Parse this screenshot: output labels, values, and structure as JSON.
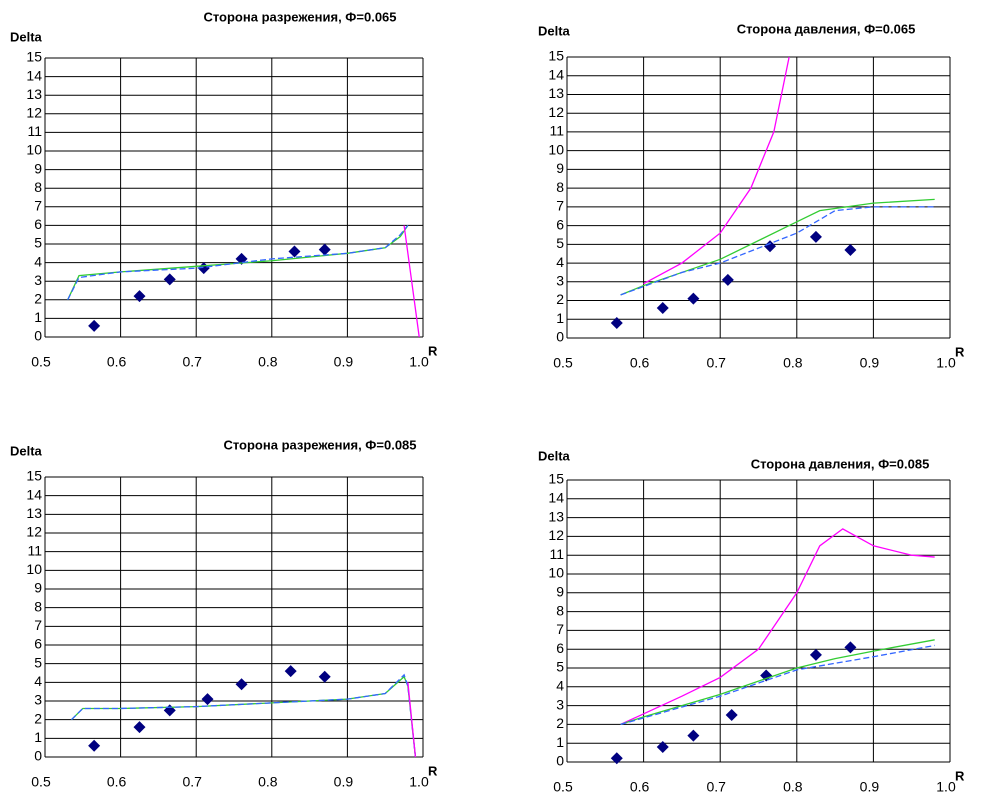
{
  "chart_data": [
    {
      "type": "line",
      "title": "Сторона разрежения, Ф=0.065",
      "ylabel": "Delta",
      "xlabel": "R",
      "xlim": [
        0.5,
        1
      ],
      "ylim": [
        0,
        15
      ],
      "xticks": [
        0.5,
        0.6,
        0.7,
        0.8,
        0.9,
        {
          "value": 1,
          "label": "1.0"
        }
      ],
      "yticks": [
        0,
        1,
        2,
        3,
        4,
        5,
        6,
        7,
        8,
        9,
        10,
        11,
        12,
        13,
        14,
        15
      ],
      "grid": true,
      "series": [
        {
          "style": "markers",
          "color": "#000080",
          "x": [
            0.565,
            0.625,
            0.665,
            0.71,
            0.76,
            0.83,
            0.87
          ],
          "values": [
            0.6,
            2.2,
            3.1,
            3.7,
            4.2,
            4.6,
            4.7
          ]
        },
        {
          "style": "line",
          "color": "#33cc33",
          "x": [
            0.53,
            0.545,
            0.6,
            0.7,
            0.8,
            0.9,
            0.95,
            0.97,
            0.98
          ],
          "values": [
            2,
            3.3,
            3.5,
            3.8,
            4.1,
            4.5,
            4.8,
            5.4,
            6
          ]
        },
        {
          "style": "dashed",
          "color": "#3366ff",
          "x": [
            0.53,
            0.545,
            0.6,
            0.7,
            0.8,
            0.9,
            0.95,
            0.97,
            0.98
          ],
          "values": [
            2,
            3.2,
            3.5,
            3.7,
            4.2,
            4.5,
            4.8,
            5.5,
            6
          ]
        },
        {
          "style": "line",
          "color": "#ff00ff",
          "x": [
            0.975,
            0.985,
            0.995
          ],
          "values": [
            6,
            3,
            0
          ]
        }
      ]
    },
    {
      "type": "line",
      "title": "Сторона давления, Ф=0.065",
      "ylabel": "Delta",
      "xlabel": "R",
      "xlim": [
        0.5,
        1
      ],
      "ylim": [
        0,
        15
      ],
      "xticks": [
        0.5,
        0.6,
        0.7,
        0.8,
        0.9,
        {
          "value": 1,
          "label": "1.0"
        }
      ],
      "yticks": [
        0,
        1,
        2,
        3,
        4,
        5,
        6,
        7,
        8,
        9,
        10,
        11,
        12,
        13,
        14,
        15
      ],
      "grid": true,
      "series": [
        {
          "style": "markers",
          "color": "#000080",
          "x": [
            0.565,
            0.625,
            0.665,
            0.71,
            0.765,
            0.825,
            0.87
          ],
          "values": [
            0.8,
            1.6,
            2.1,
            3.1,
            4.9,
            5.4,
            4.7
          ]
        },
        {
          "style": "line",
          "color": "#ff00ff",
          "x": [
            0.6,
            0.65,
            0.7,
            0.74,
            0.77,
            0.785,
            0.79
          ],
          "values": [
            2.9,
            4,
            5.6,
            8,
            11,
            14,
            15
          ]
        },
        {
          "style": "line",
          "color": "#33cc33",
          "x": [
            0.57,
            0.6,
            0.7,
            0.8,
            0.83,
            0.9,
            0.98
          ],
          "values": [
            2.3,
            2.8,
            4.2,
            6.2,
            6.8,
            7.2,
            7.4
          ]
        },
        {
          "style": "dashed",
          "color": "#3366ff",
          "x": [
            0.57,
            0.65,
            0.7,
            0.8,
            0.85,
            0.9,
            0.98
          ],
          "values": [
            2.3,
            3.5,
            4,
            5.6,
            6.8,
            7,
            7
          ]
        }
      ]
    },
    {
      "type": "line",
      "title": "Сторона разрежения, Ф=0.085",
      "ylabel": "Delta",
      "xlabel": "R",
      "xlim": [
        0.5,
        1
      ],
      "ylim": [
        0,
        15
      ],
      "xticks": [
        0.5,
        0.6,
        0.7,
        0.8,
        0.9,
        {
          "value": 1,
          "label": "1.0"
        }
      ],
      "yticks": [
        0,
        1,
        2,
        3,
        4,
        5,
        6,
        7,
        8,
        9,
        10,
        11,
        12,
        13,
        14,
        15
      ],
      "grid": true,
      "series": [
        {
          "style": "markers",
          "color": "#000080",
          "x": [
            0.565,
            0.625,
            0.665,
            0.715,
            0.76,
            0.825,
            0.87
          ],
          "values": [
            0.6,
            1.6,
            2.5,
            3.1,
            3.9,
            4.6,
            4.3
          ]
        },
        {
          "style": "line",
          "color": "#33cc33",
          "x": [
            0.535,
            0.55,
            0.6,
            0.7,
            0.8,
            0.9,
            0.95,
            0.975,
            0.98,
            0.99
          ],
          "values": [
            2,
            2.6,
            2.6,
            2.7,
            2.9,
            3.1,
            3.4,
            4.3,
            3.8,
            0
          ]
        },
        {
          "style": "dashed",
          "color": "#3366ff",
          "x": [
            0.535,
            0.55,
            0.6,
            0.7,
            0.8,
            0.9,
            0.95,
            0.975,
            0.98,
            0.99
          ],
          "values": [
            2,
            2.6,
            2.6,
            2.7,
            2.9,
            3.1,
            3.4,
            4.4,
            3.8,
            0
          ]
        },
        {
          "style": "line",
          "color": "#ff00ff",
          "x": [
            0.98,
            0.99
          ],
          "values": [
            4,
            0
          ]
        }
      ]
    },
    {
      "type": "line",
      "title": "Сторона давления, Ф=0.085",
      "ylabel": "Delta",
      "xlabel": "R",
      "xlim": [
        0.5,
        1
      ],
      "ylim": [
        0,
        15
      ],
      "xticks": [
        0.5,
        0.6,
        0.7,
        0.8,
        0.9,
        {
          "value": 1,
          "label": "1.0"
        }
      ],
      "yticks": [
        0,
        1,
        2,
        3,
        4,
        5,
        6,
        7,
        8,
        9,
        10,
        11,
        12,
        13,
        14,
        15
      ],
      "grid": true,
      "series": [
        {
          "style": "markers",
          "color": "#000080",
          "x": [
            0.565,
            0.625,
            0.665,
            0.715,
            0.76,
            0.825,
            0.87
          ],
          "values": [
            0.2,
            0.8,
            1.4,
            2.5,
            4.6,
            5.7,
            6.1
          ]
        },
        {
          "style": "line",
          "color": "#ff00ff",
          "x": [
            0.57,
            0.65,
            0.7,
            0.75,
            0.8,
            0.83,
            0.86,
            0.9,
            0.95,
            0.98
          ],
          "values": [
            2,
            3.5,
            4.5,
            6,
            9,
            11.5,
            12.4,
            11.5,
            11,
            10.9
          ]
        },
        {
          "style": "line",
          "color": "#33cc33",
          "x": [
            0.57,
            0.6,
            0.7,
            0.8,
            0.85,
            0.9,
            0.98
          ],
          "values": [
            2,
            2.4,
            3.6,
            5,
            5.5,
            5.9,
            6.5
          ]
        },
        {
          "style": "dashed",
          "color": "#3366ff",
          "x": [
            0.57,
            0.7,
            0.8,
            0.9,
            0.98
          ],
          "values": [
            2,
            3.5,
            4.9,
            5.6,
            6.2
          ]
        }
      ]
    }
  ]
}
